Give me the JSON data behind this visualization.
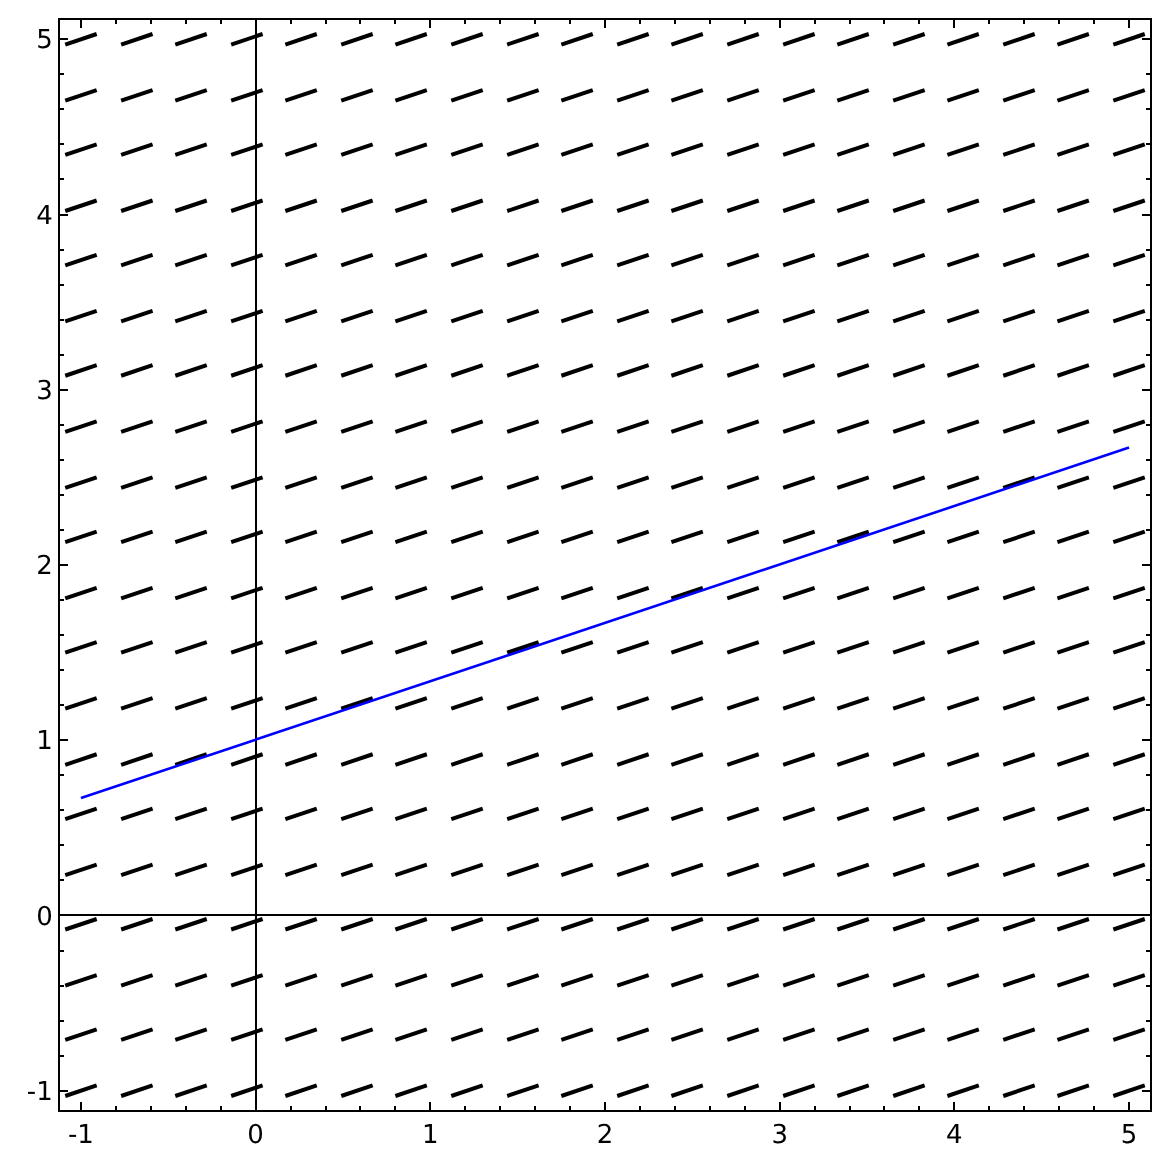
{
  "chart_data": {
    "type": "line",
    "xlim": [
      -1.12,
      5.12
    ],
    "ylim": [
      -1.11,
      5.11
    ],
    "xticks": [
      -1,
      {
        "value": -0.8,
        "label": null
      },
      {
        "value": -0.6,
        "label": null
      },
      {
        "value": -0.4,
        "label": null
      },
      {
        "value": -0.2,
        "label": null
      },
      0,
      {
        "value": 0.2,
        "label": null
      },
      {
        "value": 0.4,
        "label": null
      },
      {
        "value": 0.6,
        "label": null
      },
      {
        "value": 0.8,
        "label": null
      },
      1,
      {
        "value": 1.2,
        "label": null
      },
      {
        "value": 1.4,
        "label": null
      },
      {
        "value": 1.6,
        "label": null
      },
      {
        "value": 1.8,
        "label": null
      },
      2,
      {
        "value": 2.2,
        "label": null
      },
      {
        "value": 2.4,
        "label": null
      },
      {
        "value": 2.6,
        "label": null
      },
      {
        "value": 2.8,
        "label": null
      },
      3,
      {
        "value": 3.2,
        "label": null
      },
      {
        "value": 3.4,
        "label": null
      },
      {
        "value": 3.6,
        "label": null
      },
      {
        "value": 3.8,
        "label": null
      },
      4,
      {
        "value": 4.2,
        "label": null
      },
      {
        "value": 4.4,
        "label": null
      },
      {
        "value": 4.6,
        "label": null
      },
      {
        "value": 4.8,
        "label": null
      },
      5
    ],
    "yticks": [
      -1,
      {
        "value": -0.8,
        "label": null
      },
      {
        "value": -0.6,
        "label": null
      },
      {
        "value": -0.4,
        "label": null
      },
      {
        "value": -0.2,
        "label": null
      },
      0,
      {
        "value": 0.2,
        "label": null
      },
      {
        "value": 0.4,
        "label": null
      },
      {
        "value": 0.6,
        "label": null
      },
      {
        "value": 0.8,
        "label": null
      },
      1,
      {
        "value": 1.2,
        "label": null
      },
      {
        "value": 1.4,
        "label": null
      },
      {
        "value": 1.6,
        "label": null
      },
      {
        "value": 1.8,
        "label": null
      },
      2,
      {
        "value": 2.2,
        "label": null
      },
      {
        "value": 2.4,
        "label": null
      },
      {
        "value": 2.6,
        "label": null
      },
      {
        "value": 2.8,
        "label": null
      },
      3,
      {
        "value": 3.2,
        "label": null
      },
      {
        "value": 3.4,
        "label": null
      },
      {
        "value": 3.6,
        "label": null
      },
      {
        "value": 3.8,
        "label": null
      },
      4,
      {
        "value": 4.2,
        "label": null
      },
      {
        "value": 4.4,
        "label": null
      },
      {
        "value": 4.6,
        "label": null
      },
      {
        "value": 4.8,
        "label": null
      },
      5
    ],
    "x": [
      -1.09,
      -0.91,
      null,
      -0.77,
      -0.59,
      null,
      -0.46,
      -0.28,
      null,
      -0.14,
      0.04,
      null,
      0.17,
      0.35,
      null,
      0.49,
      0.67,
      null,
      0.8,
      0.98,
      null,
      1.12,
      1.3,
      null,
      1.44,
      1.62,
      null,
      1.75,
      1.93,
      null,
      2.07,
      2.25,
      null,
      2.38,
      2.56,
      null,
      2.7,
      2.88,
      null,
      3.02,
      3.2,
      null,
      3.33,
      3.51,
      null,
      3.65,
      3.83,
      null,
      3.96,
      4.14,
      null,
      4.28,
      4.46,
      null,
      4.59,
      4.77,
      null,
      4.91,
      5.09,
      null
    ],
    "series": [
      {
        "color": "#000000",
        "values": [
          -1.03,
          -0.97,
          null,
          -1.03,
          -0.97,
          null,
          -1.03,
          -0.97,
          null,
          -1.03,
          -0.97,
          null,
          -1.03,
          -0.97,
          null,
          -1.03,
          -0.97,
          null,
          -1.03,
          -0.97,
          null,
          -1.03,
          -0.97,
          null,
          -1.03,
          -0.97,
          null,
          -1.03,
          -0.97,
          null,
          -1.03,
          -0.97,
          null,
          -1.03,
          -0.97,
          null,
          -1.03,
          -0.97,
          null,
          -1.03,
          -0.97,
          null,
          -1.03,
          -0.97,
          null,
          -1.03,
          -0.97,
          null,
          -1.03,
          -0.97,
          null,
          -1.03,
          -0.97,
          null,
          -1.03,
          -0.97,
          null,
          -1.03,
          -0.97,
          null
        ]
      },
      {
        "color": "#000000",
        "values": [
          -0.71,
          -0.65,
          null,
          -0.71,
          -0.65,
          null,
          -0.71,
          -0.65,
          null,
          -0.71,
          -0.65,
          null,
          -0.71,
          -0.65,
          null,
          -0.71,
          -0.65,
          null,
          -0.71,
          -0.65,
          null,
          -0.71,
          -0.65,
          null,
          -0.71,
          -0.65,
          null,
          -0.71,
          -0.65,
          null,
          -0.71,
          -0.65,
          null,
          -0.71,
          -0.65,
          null,
          -0.71,
          -0.65,
          null,
          -0.71,
          -0.65,
          null,
          -0.71,
          -0.65,
          null,
          -0.71,
          -0.65,
          null,
          -0.71,
          -0.65,
          null,
          -0.71,
          -0.65,
          null,
          -0.71,
          -0.65,
          null,
          -0.71,
          -0.65,
          null
        ]
      },
      {
        "color": "#000000",
        "values": [
          -0.4,
          -0.34,
          null,
          -0.4,
          -0.34,
          null,
          -0.4,
          -0.34,
          null,
          -0.4,
          -0.34,
          null,
          -0.4,
          -0.34,
          null,
          -0.4,
          -0.34,
          null,
          -0.4,
          -0.34,
          null,
          -0.4,
          -0.34,
          null,
          -0.4,
          -0.34,
          null,
          -0.4,
          -0.34,
          null,
          -0.4,
          -0.34,
          null,
          -0.4,
          -0.34,
          null,
          -0.4,
          -0.34,
          null,
          -0.4,
          -0.34,
          null,
          -0.4,
          -0.34,
          null,
          -0.4,
          -0.34,
          null,
          -0.4,
          -0.34,
          null,
          -0.4,
          -0.34,
          null,
          -0.4,
          -0.34,
          null,
          -0.4,
          -0.34,
          null
        ]
      },
      {
        "color": "#000000",
        "values": [
          -0.08,
          -0.02,
          null,
          -0.08,
          -0.02,
          null,
          -0.08,
          -0.02,
          null,
          -0.08,
          -0.02,
          null,
          -0.08,
          -0.02,
          null,
          -0.08,
          -0.02,
          null,
          -0.08,
          -0.02,
          null,
          -0.08,
          -0.02,
          null,
          -0.08,
          -0.02,
          null,
          -0.08,
          -0.02,
          null,
          -0.08,
          -0.02,
          null,
          -0.08,
          -0.02,
          null,
          -0.08,
          -0.02,
          null,
          -0.08,
          -0.02,
          null,
          -0.08,
          -0.02,
          null,
          -0.08,
          -0.02,
          null,
          -0.08,
          -0.02,
          null,
          -0.08,
          -0.02,
          null,
          -0.08,
          -0.02,
          null,
          -0.08,
          -0.02,
          null
        ]
      },
      {
        "color": "#000000",
        "values": [
          0.23,
          0.29,
          null,
          0.23,
          0.29,
          null,
          0.23,
          0.29,
          null,
          0.23,
          0.29,
          null,
          0.23,
          0.29,
          null,
          0.23,
          0.29,
          null,
          0.23,
          0.29,
          null,
          0.23,
          0.29,
          null,
          0.23,
          0.29,
          null,
          0.23,
          0.29,
          null,
          0.23,
          0.29,
          null,
          0.23,
          0.29,
          null,
          0.23,
          0.29,
          null,
          0.23,
          0.29,
          null,
          0.23,
          0.29,
          null,
          0.23,
          0.29,
          null,
          0.23,
          0.29,
          null,
          0.23,
          0.29,
          null,
          0.23,
          0.29,
          null,
          0.23,
          0.29,
          null
        ]
      },
      {
        "color": "#000000",
        "values": [
          0.55,
          0.61,
          null,
          0.55,
          0.61,
          null,
          0.55,
          0.61,
          null,
          0.55,
          0.61,
          null,
          0.55,
          0.61,
          null,
          0.55,
          0.61,
          null,
          0.55,
          0.61,
          null,
          0.55,
          0.61,
          null,
          0.55,
          0.61,
          null,
          0.55,
          0.61,
          null,
          0.55,
          0.61,
          null,
          0.55,
          0.61,
          null,
          0.55,
          0.61,
          null,
          0.55,
          0.61,
          null,
          0.55,
          0.61,
          null,
          0.55,
          0.61,
          null,
          0.55,
          0.61,
          null,
          0.55,
          0.61,
          null,
          0.55,
          0.61,
          null,
          0.55,
          0.61,
          null
        ]
      },
      {
        "color": "#000000",
        "values": [
          0.86,
          0.92,
          null,
          0.86,
          0.92,
          null,
          0.86,
          0.92,
          null,
          0.86,
          0.92,
          null,
          0.86,
          0.92,
          null,
          0.86,
          0.92,
          null,
          0.86,
          0.92,
          null,
          0.86,
          0.92,
          null,
          0.86,
          0.92,
          null,
          0.86,
          0.92,
          null,
          0.86,
          0.92,
          null,
          0.86,
          0.92,
          null,
          0.86,
          0.92,
          null,
          0.86,
          0.92,
          null,
          0.86,
          0.92,
          null,
          0.86,
          0.92,
          null,
          0.86,
          0.92,
          null,
          0.86,
          0.92,
          null,
          0.86,
          0.92,
          null,
          0.86,
          0.92,
          null
        ]
      },
      {
        "color": "#000000",
        "values": [
          1.18,
          1.24,
          null,
          1.18,
          1.24,
          null,
          1.18,
          1.24,
          null,
          1.18,
          1.24,
          null,
          1.18,
          1.24,
          null,
          1.18,
          1.24,
          null,
          1.18,
          1.24,
          null,
          1.18,
          1.24,
          null,
          1.18,
          1.24,
          null,
          1.18,
          1.24,
          null,
          1.18,
          1.24,
          null,
          1.18,
          1.24,
          null,
          1.18,
          1.24,
          null,
          1.18,
          1.24,
          null,
          1.18,
          1.24,
          null,
          1.18,
          1.24,
          null,
          1.18,
          1.24,
          null,
          1.18,
          1.24,
          null,
          1.18,
          1.24,
          null,
          1.18,
          1.24,
          null
        ]
      },
      {
        "color": "#000000",
        "values": [
          1.5,
          1.56,
          null,
          1.5,
          1.56,
          null,
          1.5,
          1.56,
          null,
          1.5,
          1.56,
          null,
          1.5,
          1.56,
          null,
          1.5,
          1.56,
          null,
          1.5,
          1.56,
          null,
          1.5,
          1.56,
          null,
          1.5,
          1.56,
          null,
          1.5,
          1.56,
          null,
          1.5,
          1.56,
          null,
          1.5,
          1.56,
          null,
          1.5,
          1.56,
          null,
          1.5,
          1.56,
          null,
          1.5,
          1.56,
          null,
          1.5,
          1.56,
          null,
          1.5,
          1.56,
          null,
          1.5,
          1.56,
          null,
          1.5,
          1.56,
          null,
          1.5,
          1.56,
          null
        ]
      },
      {
        "color": "#000000",
        "values": [
          1.81,
          1.87,
          null,
          1.81,
          1.87,
          null,
          1.81,
          1.87,
          null,
          1.81,
          1.87,
          null,
          1.81,
          1.87,
          null,
          1.81,
          1.87,
          null,
          1.81,
          1.87,
          null,
          1.81,
          1.87,
          null,
          1.81,
          1.87,
          null,
          1.81,
          1.87,
          null,
          1.81,
          1.87,
          null,
          1.81,
          1.87,
          null,
          1.81,
          1.87,
          null,
          1.81,
          1.87,
          null,
          1.81,
          1.87,
          null,
          1.81,
          1.87,
          null,
          1.81,
          1.87,
          null,
          1.81,
          1.87,
          null,
          1.81,
          1.87,
          null,
          1.81,
          1.87,
          null
        ]
      },
      {
        "color": "#000000",
        "values": [
          2.13,
          2.19,
          null,
          2.13,
          2.19,
          null,
          2.13,
          2.19,
          null,
          2.13,
          2.19,
          null,
          2.13,
          2.19,
          null,
          2.13,
          2.19,
          null,
          2.13,
          2.19,
          null,
          2.13,
          2.19,
          null,
          2.13,
          2.19,
          null,
          2.13,
          2.19,
          null,
          2.13,
          2.19,
          null,
          2.13,
          2.19,
          null,
          2.13,
          2.19,
          null,
          2.13,
          2.19,
          null,
          2.13,
          2.19,
          null,
          2.13,
          2.19,
          null,
          2.13,
          2.19,
          null,
          2.13,
          2.19,
          null,
          2.13,
          2.19,
          null,
          2.13,
          2.19,
          null
        ]
      },
      {
        "color": "#000000",
        "values": [
          2.44,
          2.5,
          null,
          2.44,
          2.5,
          null,
          2.44,
          2.5,
          null,
          2.44,
          2.5,
          null,
          2.44,
          2.5,
          null,
          2.44,
          2.5,
          null,
          2.44,
          2.5,
          null,
          2.44,
          2.5,
          null,
          2.44,
          2.5,
          null,
          2.44,
          2.5,
          null,
          2.44,
          2.5,
          null,
          2.44,
          2.5,
          null,
          2.44,
          2.5,
          null,
          2.44,
          2.5,
          null,
          2.44,
          2.5,
          null,
          2.44,
          2.5,
          null,
          2.44,
          2.5,
          null,
          2.44,
          2.5,
          null,
          2.44,
          2.5,
          null,
          2.44,
          2.5,
          null
        ]
      },
      {
        "color": "#000000",
        "values": [
          2.76,
          2.82,
          null,
          2.76,
          2.82,
          null,
          2.76,
          2.82,
          null,
          2.76,
          2.82,
          null,
          2.76,
          2.82,
          null,
          2.76,
          2.82,
          null,
          2.76,
          2.82,
          null,
          2.76,
          2.82,
          null,
          2.76,
          2.82,
          null,
          2.76,
          2.82,
          null,
          2.76,
          2.82,
          null,
          2.76,
          2.82,
          null,
          2.76,
          2.82,
          null,
          2.76,
          2.82,
          null,
          2.76,
          2.82,
          null,
          2.76,
          2.82,
          null,
          2.76,
          2.82,
          null,
          2.76,
          2.82,
          null,
          2.76,
          2.82,
          null,
          2.76,
          2.82,
          null
        ]
      },
      {
        "color": "#000000",
        "values": [
          3.08,
          3.14,
          null,
          3.08,
          3.14,
          null,
          3.08,
          3.14,
          null,
          3.08,
          3.14,
          null,
          3.08,
          3.14,
          null,
          3.08,
          3.14,
          null,
          3.08,
          3.14,
          null,
          3.08,
          3.14,
          null,
          3.08,
          3.14,
          null,
          3.08,
          3.14,
          null,
          3.08,
          3.14,
          null,
          3.08,
          3.14,
          null,
          3.08,
          3.14,
          null,
          3.08,
          3.14,
          null,
          3.08,
          3.14,
          null,
          3.08,
          3.14,
          null,
          3.08,
          3.14,
          null,
          3.08,
          3.14,
          null,
          3.08,
          3.14,
          null,
          3.08,
          3.14,
          null
        ]
      },
      {
        "color": "#000000",
        "values": [
          3.39,
          3.45,
          null,
          3.39,
          3.45,
          null,
          3.39,
          3.45,
          null,
          3.39,
          3.45,
          null,
          3.39,
          3.45,
          null,
          3.39,
          3.45,
          null,
          3.39,
          3.45,
          null,
          3.39,
          3.45,
          null,
          3.39,
          3.45,
          null,
          3.39,
          3.45,
          null,
          3.39,
          3.45,
          null,
          3.39,
          3.45,
          null,
          3.39,
          3.45,
          null,
          3.39,
          3.45,
          null,
          3.39,
          3.45,
          null,
          3.39,
          3.45,
          null,
          3.39,
          3.45,
          null,
          3.39,
          3.45,
          null,
          3.39,
          3.45,
          null,
          3.39,
          3.45,
          null
        ]
      },
      {
        "color": "#000000",
        "values": [
          3.71,
          3.77,
          null,
          3.71,
          3.77,
          null,
          3.71,
          3.77,
          null,
          3.71,
          3.77,
          null,
          3.71,
          3.77,
          null,
          3.71,
          3.77,
          null,
          3.71,
          3.77,
          null,
          3.71,
          3.77,
          null,
          3.71,
          3.77,
          null,
          3.71,
          3.77,
          null,
          3.71,
          3.77,
          null,
          3.71,
          3.77,
          null,
          3.71,
          3.77,
          null,
          3.71,
          3.77,
          null,
          3.71,
          3.77,
          null,
          3.71,
          3.77,
          null,
          3.71,
          3.77,
          null,
          3.71,
          3.77,
          null,
          3.71,
          3.77,
          null,
          3.71,
          3.77,
          null
        ]
      },
      {
        "color": "#000000",
        "values": [
          4.02,
          4.08,
          null,
          4.02,
          4.08,
          null,
          4.02,
          4.08,
          null,
          4.02,
          4.08,
          null,
          4.02,
          4.08,
          null,
          4.02,
          4.08,
          null,
          4.02,
          4.08,
          null,
          4.02,
          4.08,
          null,
          4.02,
          4.08,
          null,
          4.02,
          4.08,
          null,
          4.02,
          4.08,
          null,
          4.02,
          4.08,
          null,
          4.02,
          4.08,
          null,
          4.02,
          4.08,
          null,
          4.02,
          4.08,
          null,
          4.02,
          4.08,
          null,
          4.02,
          4.08,
          null,
          4.02,
          4.08,
          null,
          4.02,
          4.08,
          null,
          4.02,
          4.08,
          null
        ]
      },
      {
        "color": "#000000",
        "values": [
          4.34,
          4.4,
          null,
          4.34,
          4.4,
          null,
          4.34,
          4.4,
          null,
          4.34,
          4.4,
          null,
          4.34,
          4.4,
          null,
          4.34,
          4.4,
          null,
          4.34,
          4.4,
          null,
          4.34,
          4.4,
          null,
          4.34,
          4.4,
          null,
          4.34,
          4.4,
          null,
          4.34,
          4.4,
          null,
          4.34,
          4.4,
          null,
          4.34,
          4.4,
          null,
          4.34,
          4.4,
          null,
          4.34,
          4.4,
          null,
          4.34,
          4.4,
          null,
          4.34,
          4.4,
          null,
          4.34,
          4.4,
          null,
          4.34,
          4.4,
          null,
          4.34,
          4.4,
          null
        ]
      },
      {
        "color": "#000000",
        "values": [
          4.65,
          4.71,
          null,
          4.65,
          4.71,
          null,
          4.65,
          4.71,
          null,
          4.65,
          4.71,
          null,
          4.65,
          4.71,
          null,
          4.65,
          4.71,
          null,
          4.65,
          4.71,
          null,
          4.65,
          4.71,
          null,
          4.65,
          4.71,
          null,
          4.65,
          4.71,
          null,
          4.65,
          4.71,
          null,
          4.65,
          4.71,
          null,
          4.65,
          4.71,
          null,
          4.65,
          4.71,
          null,
          4.65,
          4.71,
          null,
          4.65,
          4.71,
          null,
          4.65,
          4.71,
          null,
          4.65,
          4.71,
          null,
          4.65,
          4.71,
          null,
          4.65,
          4.71,
          null
        ]
      },
      {
        "color": "#000000",
        "values": [
          4.97,
          5.03,
          null,
          4.97,
          5.03,
          null,
          4.97,
          5.03,
          null,
          4.97,
          5.03,
          null,
          4.97,
          5.03,
          null,
          4.97,
          5.03,
          null,
          4.97,
          5.03,
          null,
          4.97,
          5.03,
          null,
          4.97,
          5.03,
          null,
          4.97,
          5.03,
          null,
          4.97,
          5.03,
          null,
          4.97,
          5.03,
          null,
          4.97,
          5.03,
          null,
          4.97,
          5.03,
          null,
          4.97,
          5.03,
          null,
          4.97,
          5.03,
          null,
          4.97,
          5.03,
          null,
          4.97,
          5.03,
          null,
          4.97,
          5.03,
          null,
          4.97,
          5.03,
          null
        ]
      },
      {
        "color": "#0000ff",
        "x": [
          -1,
          5
        ],
        "values": [
          0.67,
          2.67
        ]
      }
    ]
  }
}
